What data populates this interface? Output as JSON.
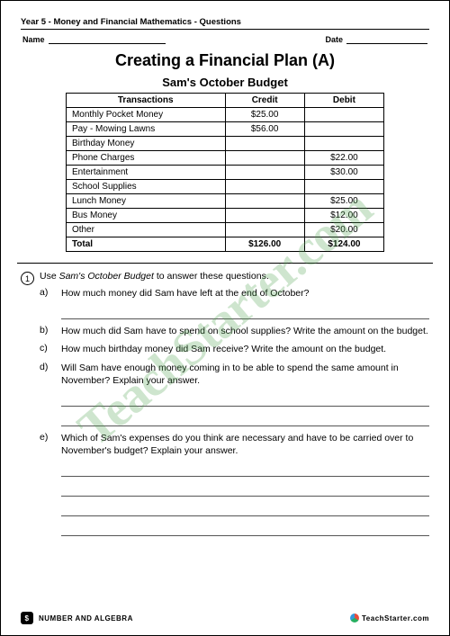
{
  "header": "Year 5 - Money and Financial Mathematics - Questions",
  "name_label": "Name",
  "date_label": "Date",
  "title": "Creating a Financial Plan (A)",
  "subtitle": "Sam's October Budget",
  "table": {
    "columns": [
      "Transactions",
      "Credit",
      "Debit"
    ],
    "rows": [
      [
        "Monthly Pocket Money",
        "$25.00",
        ""
      ],
      [
        "Pay - Mowing Lawns",
        "$56.00",
        ""
      ],
      [
        "Birthday Money",
        "",
        ""
      ],
      [
        "Phone Charges",
        "",
        "$22.00"
      ],
      [
        "Entertainment",
        "",
        "$30.00"
      ],
      [
        "School Supplies",
        "",
        ""
      ],
      [
        "Lunch Money",
        "",
        "$25.00"
      ],
      [
        "Bus Money",
        "",
        "$12.00"
      ],
      [
        "Other",
        "",
        "$20.00"
      ]
    ],
    "total": [
      "Total",
      "$126.00",
      "$124.00"
    ],
    "col_align": [
      "left",
      "center",
      "center"
    ]
  },
  "q_number": "1",
  "q_intro_pre": "Use ",
  "q_intro_em": "Sam's October Budget",
  "q_intro_post": " to answer these questions.",
  "subs": {
    "a": "How much money did Sam have left at the end of October?",
    "b": "How much did Sam have to spend on school supplies? Write the amount on the budget.",
    "c": "How much birthday money did Sam receive? Write the amount on the budget.",
    "d": "Will Sam have enough money coming in to be able to spend the same amount in November? Explain your answer.",
    "e": "Which of Sam's expenses do you think are necessary and have to be carried over to November's budget? Explain your answer."
  },
  "footer_strand": "NUMBER AND ALGEBRA",
  "footer_brand": "TeachStarter",
  "footer_brand_suffix": ".com",
  "watermark": "TeachStarter.com",
  "colors": {
    "text": "#000000",
    "line": "#000000",
    "watermark": "rgba(80,160,80,0.28)"
  }
}
